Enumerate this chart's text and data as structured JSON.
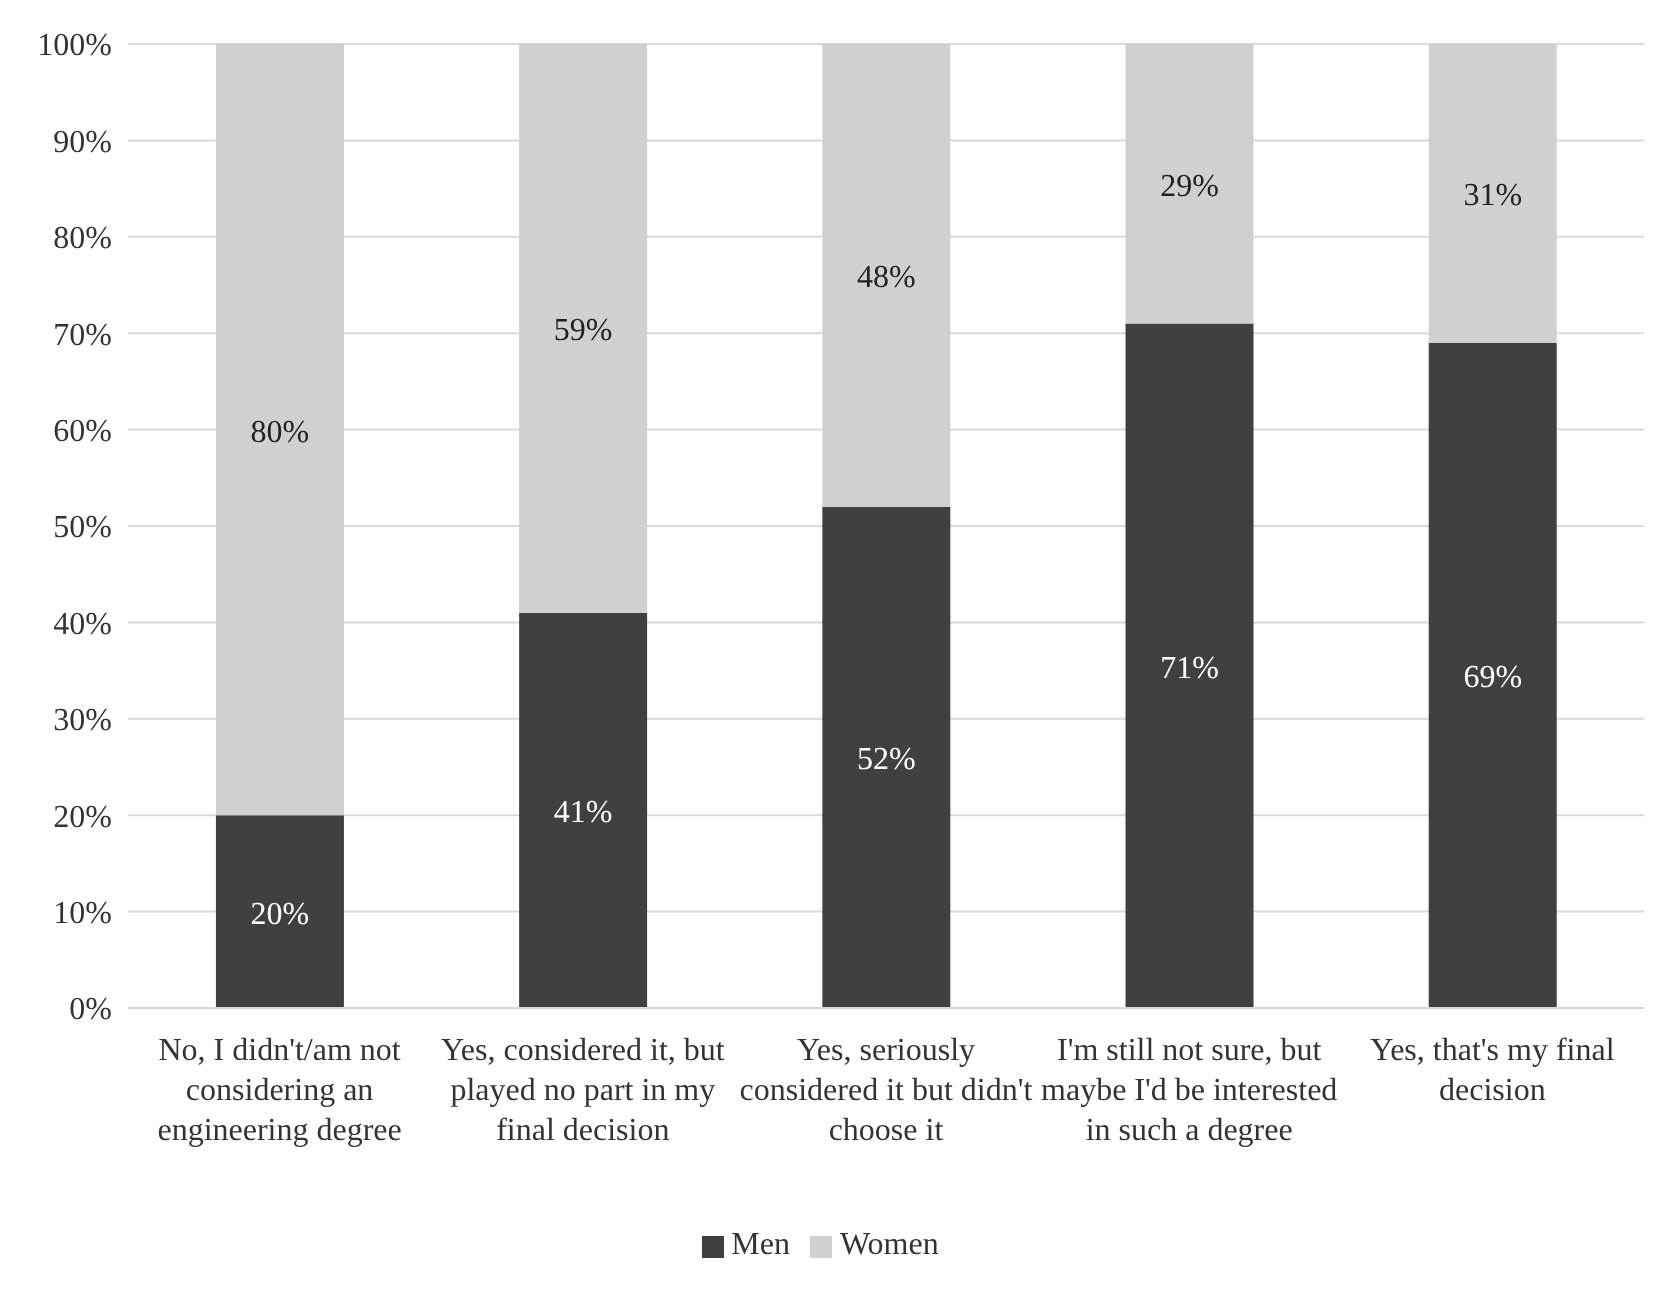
{
  "chart_data": {
    "type": "bar",
    "stacked": true,
    "categories": [
      "No, I didn't/am not considering an engineering degree",
      "Yes, considered it, but played no part in my final decision",
      "Yes, seriously considered it but didn't choose it",
      "I'm still not sure, but maybe I'd be interested in such a degree",
      "Yes, that's my final decision"
    ],
    "series": [
      {
        "name": "Men",
        "color": "#404040",
        "values": [
          20,
          41,
          52,
          71,
          69
        ],
        "value_labels": [
          "20%",
          "41%",
          "52%",
          "71%",
          "69%"
        ]
      },
      {
        "name": "Women",
        "color": "#d0d0d0",
        "values": [
          80,
          59,
          48,
          29,
          31
        ],
        "value_labels": [
          "80%",
          "59%",
          "48%",
          "29%",
          "31%"
        ]
      }
    ],
    "ylim": [
      0,
      100
    ],
    "yticks": [
      {
        "value": 0,
        "label": "0%"
      },
      {
        "value": 10,
        "label": "10%"
      },
      {
        "value": 20,
        "label": "20%"
      },
      {
        "value": 30,
        "label": "30%"
      },
      {
        "value": 40,
        "label": "40%"
      },
      {
        "value": 50,
        "label": "50%"
      },
      {
        "value": 60,
        "label": "60%"
      },
      {
        "value": 70,
        "label": "70%"
      },
      {
        "value": 80,
        "label": "80%"
      },
      {
        "value": 90,
        "label": "90%"
      },
      {
        "value": 100,
        "label": "100%"
      }
    ],
    "grid": "y",
    "legend": "bottom"
  }
}
